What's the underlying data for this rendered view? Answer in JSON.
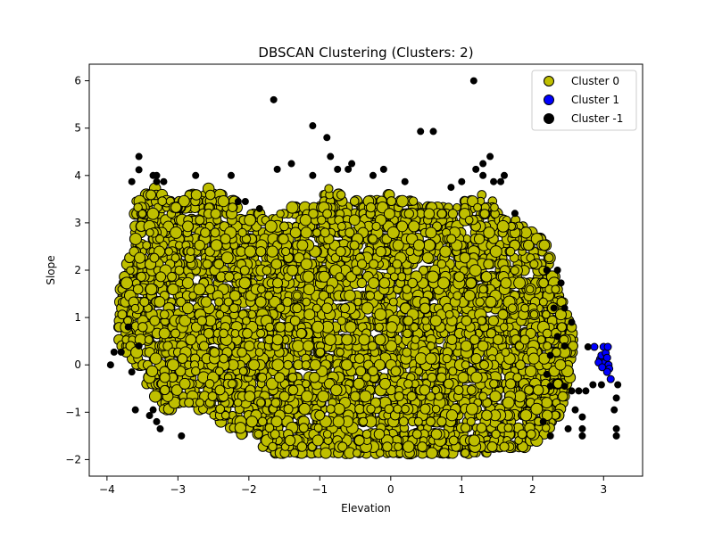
{
  "chart_data": {
    "type": "scatter",
    "title": "DBSCAN Clustering (Clusters: 2)",
    "xlabel": "Elevation",
    "ylabel": "Slope",
    "xlim": [
      -4.25,
      3.55
    ],
    "ylim": [
      -2.35,
      6.35
    ],
    "xticks": [
      -4,
      -3,
      -2,
      -1,
      0,
      1,
      2,
      3
    ],
    "yticks": [
      -2,
      -1,
      0,
      1,
      2,
      3,
      4,
      5,
      6
    ],
    "grid": false,
    "legend_position": "top-right",
    "series": [
      {
        "name": "Cluster 0",
        "color": "#bfbf00",
        "marker": "circle",
        "description": "Dense core cluster spanning roughly Elevation -3.9 to 2.6 and Slope -1.9 to 3.7",
        "envelope": [
          [
            -3.85,
            0.5
          ],
          [
            -3.8,
            1.8
          ],
          [
            -3.65,
            2.5
          ],
          [
            -3.6,
            3.45
          ],
          [
            -3.35,
            3.75
          ],
          [
            -3.0,
            3.5
          ],
          [
            -2.6,
            3.75
          ],
          [
            -2.2,
            3.5
          ],
          [
            -2.1,
            3.25
          ],
          [
            -1.5,
            3.3
          ],
          [
            -1.0,
            3.45
          ],
          [
            -0.9,
            3.75
          ],
          [
            -0.5,
            3.5
          ],
          [
            0.0,
            3.6
          ],
          [
            0.5,
            3.4
          ],
          [
            1.0,
            3.45
          ],
          [
            1.3,
            3.6
          ],
          [
            1.7,
            3.2
          ],
          [
            1.9,
            2.9
          ],
          [
            2.2,
            2.6
          ],
          [
            2.4,
            1.5
          ],
          [
            2.55,
            0.8
          ],
          [
            2.6,
            0.5
          ],
          [
            2.5,
            -0.6
          ],
          [
            2.3,
            -1.3
          ],
          [
            2.0,
            -1.7
          ],
          [
            1.5,
            -1.85
          ],
          [
            1.0,
            -1.9
          ],
          [
            0.0,
            -1.9
          ],
          [
            -1.0,
            -1.9
          ],
          [
            -1.6,
            -1.9
          ],
          [
            -2.1,
            -1.5
          ],
          [
            -2.6,
            -1.0
          ],
          [
            -2.9,
            -0.8
          ],
          [
            -3.2,
            -1.0
          ],
          [
            -3.4,
            -0.5
          ],
          [
            -3.6,
            0.0
          ],
          [
            -3.85,
            0.5
          ]
        ]
      },
      {
        "name": "Cluster 1",
        "color": "#0000ff",
        "marker": "circle",
        "points": [
          [
            2.87,
            0.38
          ],
          [
            2.95,
            0.12
          ],
          [
            2.97,
            0.2
          ],
          [
            3.0,
            0.38
          ],
          [
            3.02,
            0.05
          ],
          [
            3.03,
            0.25
          ],
          [
            3.05,
            0.15
          ],
          [
            3.06,
            0.38
          ],
          [
            3.07,
            0.0
          ],
          [
            3.08,
            -0.08
          ],
          [
            3.05,
            -0.15
          ],
          [
            3.1,
            -0.3
          ],
          [
            2.93,
            0.05
          ],
          [
            2.98,
            -0.05
          ]
        ]
      },
      {
        "name": "Cluster -1",
        "color": "#000000",
        "marker": "circle",
        "points": [
          [
            -1.65,
            5.6
          ],
          [
            1.17,
            6.0
          ],
          [
            -1.1,
            5.05
          ],
          [
            -0.9,
            4.8
          ],
          [
            0.42,
            4.93
          ],
          [
            0.6,
            4.93
          ],
          [
            -3.55,
            4.4
          ],
          [
            -3.55,
            4.12
          ],
          [
            -3.35,
            4.0
          ],
          [
            -3.3,
            4.0
          ],
          [
            -3.65,
            3.87
          ],
          [
            -3.3,
            3.87
          ],
          [
            -3.2,
            3.87
          ],
          [
            -2.75,
            4.0
          ],
          [
            -2.25,
            4.0
          ],
          [
            -1.6,
            4.13
          ],
          [
            -1.4,
            4.25
          ],
          [
            -1.1,
            4.0
          ],
          [
            -0.85,
            4.4
          ],
          [
            -0.75,
            4.13
          ],
          [
            -0.55,
            4.25
          ],
          [
            -0.6,
            4.13
          ],
          [
            -0.25,
            4.0
          ],
          [
            -0.1,
            4.13
          ],
          [
            0.2,
            3.87
          ],
          [
            0.85,
            3.75
          ],
          [
            1.0,
            3.87
          ],
          [
            1.2,
            4.13
          ],
          [
            1.3,
            4.25
          ],
          [
            1.3,
            4.0
          ],
          [
            1.4,
            4.4
          ],
          [
            1.45,
            3.87
          ],
          [
            1.6,
            4.0
          ],
          [
            1.55,
            3.87
          ],
          [
            1.75,
            3.2
          ],
          [
            2.2,
            2.0
          ],
          [
            2.35,
            2.0
          ],
          [
            2.4,
            1.73
          ],
          [
            2.3,
            1.2
          ],
          [
            2.45,
            1.2
          ],
          [
            2.55,
            0.9
          ],
          [
            2.35,
            0.6
          ],
          [
            2.45,
            0.4
          ],
          [
            2.25,
            0.2
          ],
          [
            2.2,
            -0.2
          ],
          [
            2.25,
            -0.45
          ],
          [
            2.45,
            -0.45
          ],
          [
            2.55,
            -0.55
          ],
          [
            2.65,
            -0.55
          ],
          [
            2.75,
            -0.55
          ],
          [
            2.85,
            -0.42
          ],
          [
            2.97,
            -0.42
          ],
          [
            2.6,
            -0.95
          ],
          [
            2.7,
            -1.1
          ],
          [
            2.7,
            -1.35
          ],
          [
            2.7,
            -1.5
          ],
          [
            2.5,
            -1.35
          ],
          [
            2.25,
            -1.5
          ],
          [
            2.15,
            -1.2
          ],
          [
            2.78,
            0.38
          ],
          [
            3.2,
            -0.42
          ],
          [
            3.18,
            -0.7
          ],
          [
            3.15,
            -0.95
          ],
          [
            3.18,
            -1.35
          ],
          [
            3.18,
            -1.5
          ],
          [
            -3.95,
            0.0
          ],
          [
            -3.9,
            0.27
          ],
          [
            -3.8,
            0.27
          ],
          [
            -3.7,
            0.8
          ],
          [
            -3.65,
            -0.15
          ],
          [
            -3.6,
            -0.95
          ],
          [
            -3.35,
            -0.95
          ],
          [
            -3.4,
            -1.07
          ],
          [
            -3.3,
            -1.2
          ],
          [
            -3.25,
            -1.35
          ],
          [
            -2.95,
            -1.5
          ],
          [
            -3.55,
            0.4
          ],
          [
            -2.15,
            3.45
          ],
          [
            -2.05,
            3.45
          ],
          [
            -1.85,
            3.3
          ]
        ]
      }
    ]
  }
}
